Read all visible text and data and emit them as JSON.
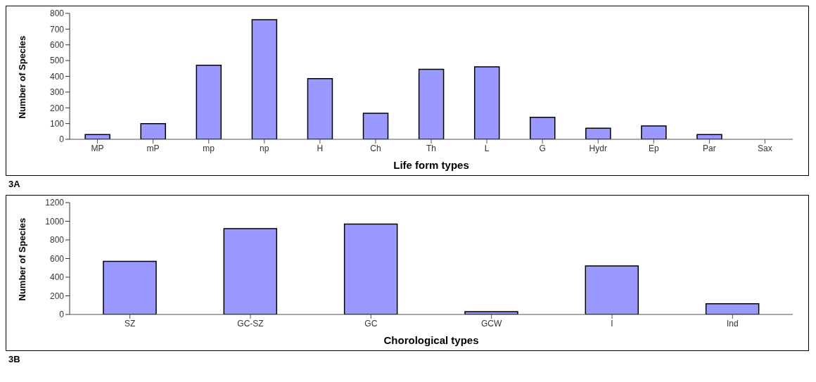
{
  "chart_data": [
    {
      "type": "bar",
      "xlabel": "Life form types",
      "ylabel": "Number of Species",
      "categories": [
        "MP",
        "mP",
        "mp",
        "np",
        "H",
        "Ch",
        "Th",
        "L",
        "G",
        "Hydr",
        "Ep",
        "Par",
        "Sax"
      ],
      "values": [
        30,
        100,
        470,
        760,
        385,
        165,
        445,
        460,
        140,
        70,
        85,
        30,
        0
      ],
      "color": "#9999ff",
      "ylim": [
        0,
        800
      ],
      "yticks": [
        0,
        100,
        200,
        300,
        400,
        500,
        600,
        700,
        800
      ],
      "grid": false,
      "legend": false,
      "annotations": [
        "3A"
      ]
    },
    {
      "type": "bar",
      "xlabel": "Chorological types",
      "ylabel": "Number of Species",
      "categories": [
        "SZ",
        "GC-SZ",
        "GC",
        "GCW",
        "I",
        "Ind"
      ],
      "values": [
        570,
        920,
        970,
        30,
        520,
        115
      ],
      "color": "#9999ff",
      "ylim": [
        0,
        1200
      ],
      "yticks": [
        0,
        200,
        400,
        600,
        800,
        1000,
        1200
      ],
      "grid": false,
      "legend": false,
      "annotations": [
        "3B"
      ]
    }
  ]
}
